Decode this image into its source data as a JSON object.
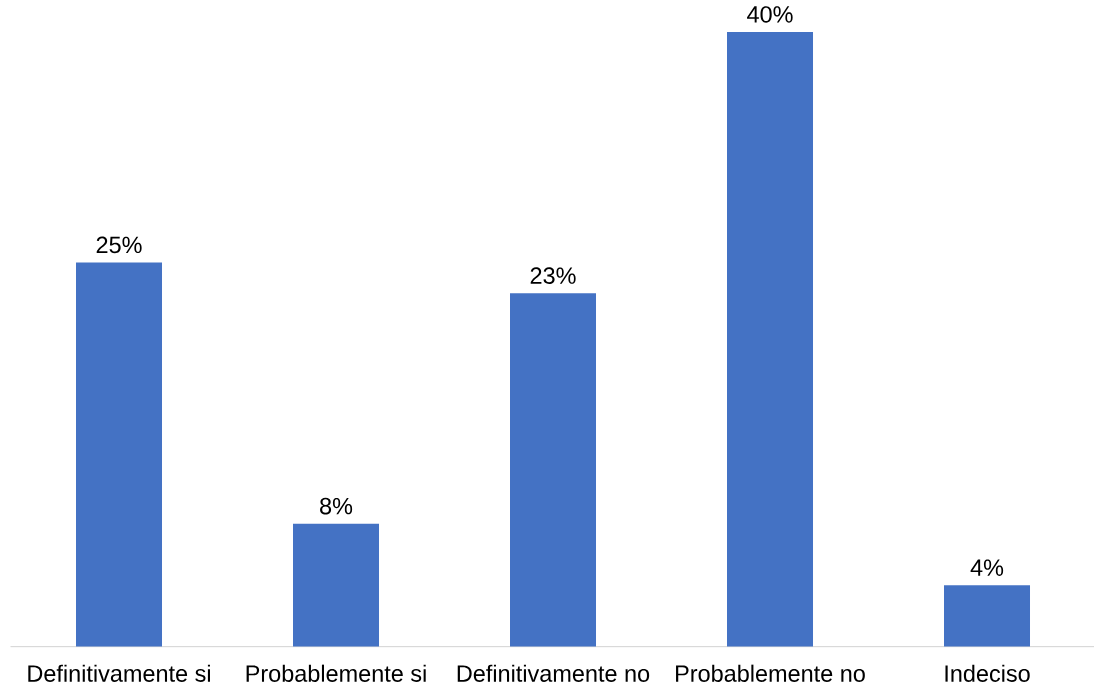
{
  "chart_data": {
    "type": "bar",
    "categories": [
      "Definitivamente si",
      "Probablemente si",
      "Definitivamente no",
      "Probablemente no",
      "Indeciso"
    ],
    "values": [
      25,
      8,
      23,
      40,
      4
    ],
    "value_labels": [
      "25%",
      "8%",
      "23%",
      "40%",
      "4%"
    ],
    "color": "#4472c4",
    "tick_labels": "x"
  }
}
